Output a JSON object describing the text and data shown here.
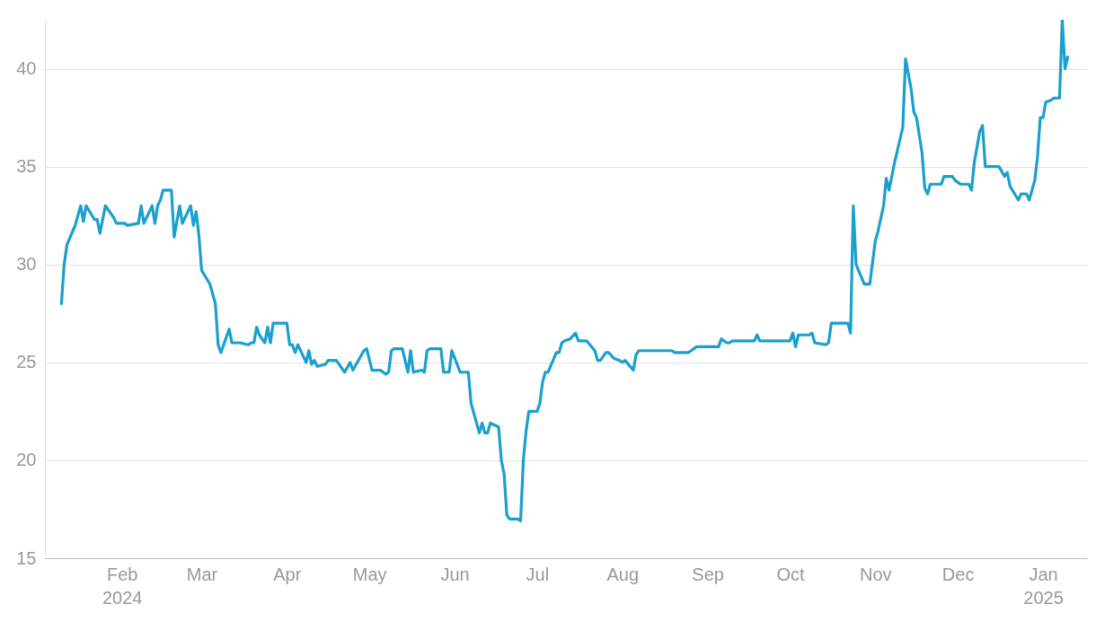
{
  "chart_data": {
    "type": "line",
    "x": [
      "2024-01-10",
      "2024-01-11",
      "2024-01-12",
      "2024-01-15",
      "2024-01-17",
      "2024-01-18",
      "2024-01-19",
      "2024-01-22",
      "2024-01-23",
      "2024-01-24",
      "2024-01-26",
      "2024-01-29",
      "2024-01-30",
      "2024-02-02",
      "2024-02-03",
      "2024-02-07",
      "2024-02-08",
      "2024-02-09",
      "2024-02-12",
      "2024-02-13",
      "2024-02-14",
      "2024-02-15",
      "2024-02-16",
      "2024-02-19",
      "2024-02-20",
      "2024-02-22",
      "2024-02-23",
      "2024-02-26",
      "2024-02-27",
      "2024-02-28",
      "2024-02-29",
      "2024-03-01",
      "2024-03-04",
      "2024-03-06",
      "2024-03-07",
      "2024-03-08",
      "2024-03-11",
      "2024-03-12",
      "2024-03-15",
      "2024-03-18",
      "2024-03-19",
      "2024-03-20",
      "2024-03-21",
      "2024-03-22",
      "2024-03-24",
      "2024-03-25",
      "2024-03-26",
      "2024-03-27",
      "2024-04-01",
      "2024-04-02",
      "2024-04-03",
      "2024-04-04",
      "2024-04-05",
      "2024-04-08",
      "2024-04-09",
      "2024-04-10",
      "2024-04-11",
      "2024-04-12",
      "2024-04-15",
      "2024-04-16",
      "2024-04-19",
      "2024-04-22",
      "2024-04-24",
      "2024-04-25",
      "2024-04-29",
      "2024-04-30",
      "2024-05-02",
      "2024-05-05",
      "2024-05-07",
      "2024-05-08",
      "2024-05-09",
      "2024-05-10",
      "2024-05-13",
      "2024-05-15",
      "2024-05-16",
      "2024-05-17",
      "2024-05-20",
      "2024-05-21",
      "2024-05-22",
      "2024-05-23",
      "2024-05-27",
      "2024-05-28",
      "2024-05-30",
      "2024-05-31",
      "2024-06-03",
      "2024-06-06",
      "2024-06-07",
      "2024-06-10",
      "2024-06-11",
      "2024-06-12",
      "2024-06-13",
      "2024-06-14",
      "2024-06-17",
      "2024-06-18",
      "2024-06-19",
      "2024-06-20",
      "2024-06-21",
      "2024-06-24",
      "2024-06-25",
      "2024-06-26",
      "2024-06-27",
      "2024-06-28",
      "2024-07-01",
      "2024-07-02",
      "2024-07-03",
      "2024-07-04",
      "2024-07-05",
      "2024-07-08",
      "2024-07-09",
      "2024-07-10",
      "2024-07-11",
      "2024-07-13",
      "2024-07-15",
      "2024-07-16",
      "2024-07-19",
      "2024-07-22",
      "2024-07-23",
      "2024-07-24",
      "2024-07-26",
      "2024-07-27",
      "2024-07-29",
      "2024-07-31",
      "2024-08-01",
      "2024-08-02",
      "2024-08-05",
      "2024-08-06",
      "2024-08-07",
      "2024-08-19",
      "2024-08-20",
      "2024-08-25",
      "2024-08-26",
      "2024-08-28",
      "2024-09-05",
      "2024-09-06",
      "2024-09-08",
      "2024-09-09",
      "2024-09-10",
      "2024-09-18",
      "2024-09-19",
      "2024-09-20",
      "2024-10-01",
      "2024-10-02",
      "2024-10-03",
      "2024-10-04",
      "2024-10-08",
      "2024-10-09",
      "2024-10-10",
      "2024-10-14",
      "2024-10-15",
      "2024-10-16",
      "2024-10-21",
      "2024-10-22",
      "2024-10-23",
      "2024-10-24",
      "2024-10-25",
      "2024-10-28",
      "2024-10-30",
      "2024-11-01",
      "2024-11-02",
      "2024-11-04",
      "2024-11-05",
      "2024-11-06",
      "2024-11-08",
      "2024-11-11",
      "2024-11-12",
      "2024-11-14",
      "2024-11-15",
      "2024-11-16",
      "2024-11-18",
      "2024-11-19",
      "2024-11-20",
      "2024-11-21",
      "2024-11-25",
      "2024-11-26",
      "2024-11-29",
      "2024-11-30",
      "2024-12-02",
      "2024-12-05",
      "2024-12-06",
      "2024-12-07",
      "2024-12-09",
      "2024-12-10",
      "2024-12-11",
      "2024-12-16",
      "2024-12-18",
      "2024-12-19",
      "2024-12-20",
      "2024-12-23",
      "2024-12-24",
      "2024-12-26",
      "2024-12-27",
      "2024-12-29",
      "2024-12-30",
      "2024-12-31",
      "2025-01-01",
      "2025-01-02",
      "2025-01-04",
      "2025-01-05",
      "2025-01-07",
      "2025-01-08",
      "2025-01-09",
      "2025-01-10"
    ],
    "series": [
      {
        "color": "#1a9fcf",
        "values": [
          28.0,
          30.0,
          31.0,
          32.0,
          33.0,
          32.2,
          33.0,
          32.3,
          32.3,
          31.6,
          33.0,
          32.4,
          32.1,
          32.1,
          32.0,
          32.1,
          33.0,
          32.1,
          33.0,
          32.1,
          33.0,
          33.3,
          33.8,
          33.8,
          31.4,
          33.0,
          32.1,
          33.0,
          32.0,
          32.7,
          31.5,
          29.7,
          29.0,
          28.0,
          25.9,
          25.5,
          26.7,
          26.0,
          26.0,
          25.9,
          26.0,
          26.0,
          26.8,
          26.4,
          26.0,
          26.8,
          26.0,
          27.0,
          27.0,
          25.9,
          25.9,
          25.5,
          25.9,
          25.0,
          25.6,
          24.9,
          25.1,
          24.8,
          24.9,
          25.1,
          25.1,
          24.5,
          25.0,
          24.6,
          25.6,
          25.7,
          24.6,
          24.6,
          24.4,
          24.5,
          25.6,
          25.7,
          25.7,
          24.5,
          25.6,
          24.5,
          24.6,
          24.5,
          25.6,
          25.7,
          25.7,
          24.5,
          24.5,
          25.6,
          24.5,
          24.5,
          22.9,
          21.4,
          21.9,
          21.4,
          21.4,
          21.9,
          21.7,
          20.0,
          19.3,
          17.2,
          17.0,
          17.0,
          16.9,
          20.0,
          21.5,
          22.5,
          22.5,
          22.9,
          24.0,
          24.5,
          24.5,
          25.5,
          25.5,
          26.0,
          26.1,
          26.2,
          26.5,
          26.1,
          26.1,
          25.6,
          25.1,
          25.1,
          25.5,
          25.5,
          25.2,
          25.1,
          25.0,
          25.1,
          24.6,
          25.4,
          25.6,
          25.6,
          25.5,
          25.5,
          25.6,
          25.8,
          25.8,
          26.2,
          26.0,
          26.0,
          26.1,
          26.1,
          26.4,
          26.1,
          26.1,
          26.5,
          25.8,
          26.4,
          26.4,
          26.5,
          26.0,
          25.9,
          26.0,
          27.0,
          27.0,
          27.0,
          26.5,
          33.0,
          30.0,
          29.0,
          29.0,
          31.2,
          31.7,
          33.0,
          34.4,
          33.8,
          35.2,
          37.0,
          40.5,
          39.0,
          37.8,
          37.5,
          35.7,
          33.9,
          33.6,
          34.1,
          34.1,
          34.5,
          34.5,
          34.3,
          34.1,
          34.1,
          33.8,
          35.2,
          36.8,
          37.1,
          35.0,
          35.0,
          34.5,
          34.7,
          34.0,
          33.3,
          33.6,
          33.6,
          33.3,
          34.3,
          35.5,
          37.5,
          37.5,
          38.3,
          38.4,
          38.5,
          38.5,
          42.5,
          40.0,
          40.6
        ]
      }
    ],
    "xlim": [
      "2024-01-04",
      "2025-01-17"
    ],
    "xticks": [
      {
        "value": "2024-02-01",
        "label": "Feb 2024"
      },
      {
        "value": "2024-03-01",
        "label": "Mar"
      },
      {
        "value": "2024-04-01",
        "label": "Apr"
      },
      {
        "value": "2024-05-01",
        "label": "May"
      },
      {
        "value": "2024-06-01",
        "label": "Jun"
      },
      {
        "value": "2024-07-01",
        "label": "Jul"
      },
      {
        "value": "2024-08-01",
        "label": "Aug"
      },
      {
        "value": "2024-09-01",
        "label": "Sep"
      },
      {
        "value": "2024-10-01",
        "label": "Oct"
      },
      {
        "value": "2024-11-01",
        "label": "Nov"
      },
      {
        "value": "2024-12-01",
        "label": "Dec"
      },
      {
        "value": "2025-01-01",
        "label": "Jan 2025"
      }
    ],
    "ylim": [
      15,
      42.5
    ],
    "yticks": [
      15,
      20,
      25,
      30,
      35,
      40
    ],
    "grid": "y"
  }
}
